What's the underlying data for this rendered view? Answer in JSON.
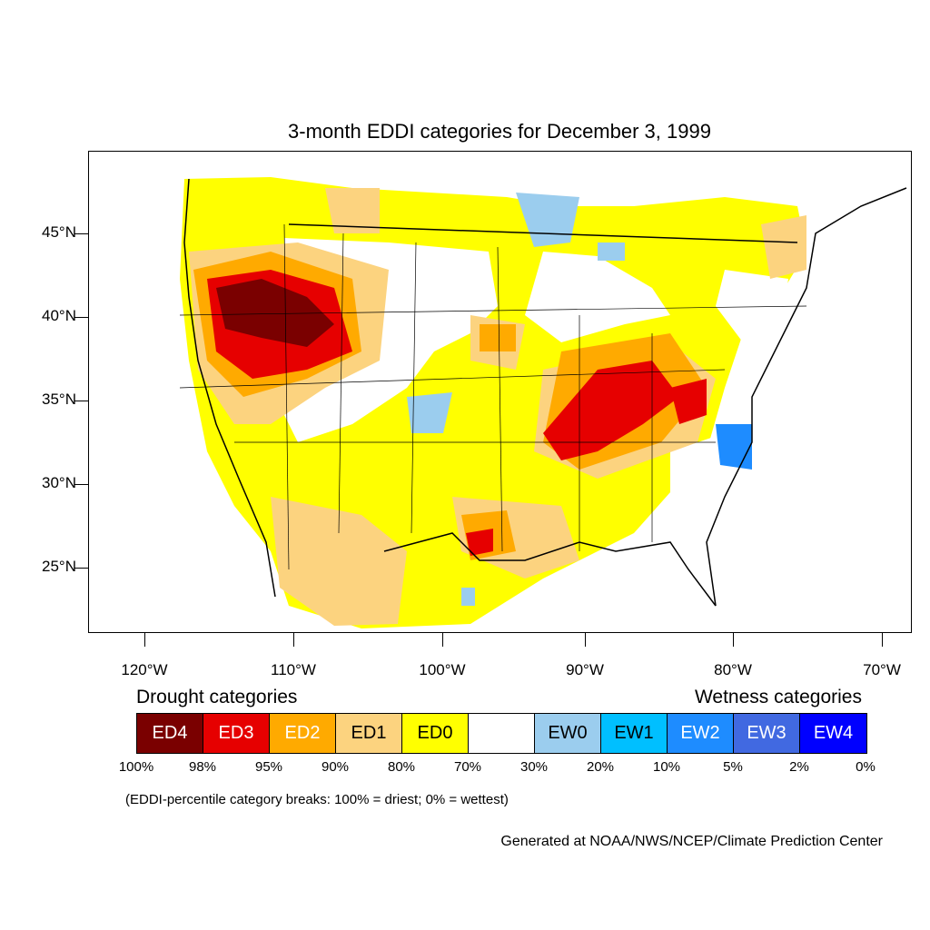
{
  "title": "3-month EDDI categories for December 3, 1999",
  "lat_labels": [
    "45°N",
    "40°N",
    "35°N",
    "30°N",
    "25°N"
  ],
  "lon_labels": [
    "120°W",
    "110°W",
    "100°W",
    "90°W",
    "80°W",
    "70°W"
  ],
  "legend": {
    "drought_heading": "Drought categories",
    "wetness_heading": "Wetness categories",
    "categories": [
      {
        "label": "ED4",
        "color": "#7a0000",
        "text_color": "#ffffff"
      },
      {
        "label": "ED3",
        "color": "#e60000",
        "text_color": "#ffffff"
      },
      {
        "label": "ED2",
        "color": "#ffaa00",
        "text_color": "#ffffff"
      },
      {
        "label": "ED1",
        "color": "#fcd37f",
        "text_color": "#000000"
      },
      {
        "label": "ED0",
        "color": "#ffff00",
        "text_color": "#000000"
      },
      {
        "label": "",
        "color": "#ffffff",
        "text_color": "#000000"
      },
      {
        "label": "EW0",
        "color": "#9bcdee",
        "text_color": "#000000"
      },
      {
        "label": "EW1",
        "color": "#00bfff",
        "text_color": "#000000"
      },
      {
        "label": "EW2",
        "color": "#1e8cff",
        "text_color": "#ffffff"
      },
      {
        "label": "EW3",
        "color": "#4169e1",
        "text_color": "#ffffff"
      },
      {
        "label": "EW4",
        "color": "#0000ff",
        "text_color": "#ffffff"
      }
    ],
    "percent_breaks": [
      "100%",
      "98%",
      "95%",
      "90%",
      "80%",
      "70%",
      "30%",
      "20%",
      "10%",
      "5%",
      "2%",
      "0%"
    ]
  },
  "note": "(EDDI-percentile category breaks: 100% = driest; 0% = wettest)",
  "credit": "Generated at NOAA/NWS/NCEP/Climate Prediction Center"
}
